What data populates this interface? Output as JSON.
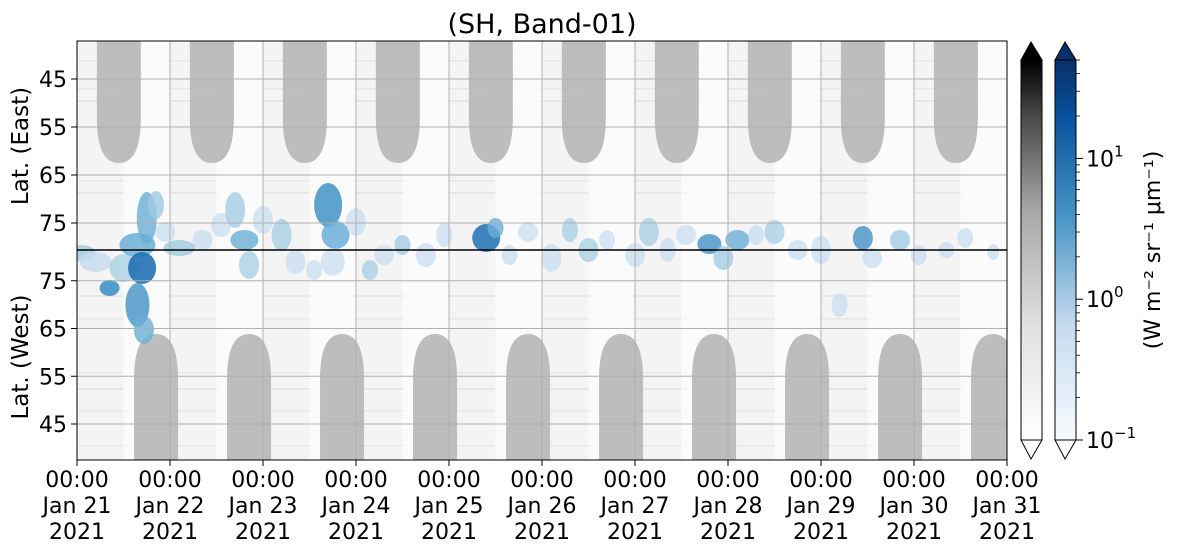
{
  "chart_data": {
    "type": "heatmap",
    "title": "(SH, Band-01)",
    "ylabel_top": "Lat. (East)",
    "ylabel_bottom": "Lat. (West)",
    "y_ticks_top": [
      "45",
      "55",
      "65",
      "75"
    ],
    "y_ticks_bottom": [
      "75",
      "65",
      "55",
      "45"
    ],
    "x_ticks": [
      {
        "time": "00:00",
        "date": "Jan 21",
        "year": "2021"
      },
      {
        "time": "00:00",
        "date": "Jan 22",
        "year": "2021"
      },
      {
        "time": "00:00",
        "date": "Jan 23",
        "year": "2021"
      },
      {
        "time": "00:00",
        "date": "Jan 24",
        "year": "2021"
      },
      {
        "time": "00:00",
        "date": "Jan 25",
        "year": "2021"
      },
      {
        "time": "00:00",
        "date": "Jan 26",
        "year": "2021"
      },
      {
        "time": "00:00",
        "date": "Jan 27",
        "year": "2021"
      },
      {
        "time": "00:00",
        "date": "Jan 28",
        "year": "2021"
      },
      {
        "time": "00:00",
        "date": "Jan 29",
        "year": "2021"
      },
      {
        "time": "00:00",
        "date": "Jan 30",
        "year": "2021"
      },
      {
        "time": "00:00",
        "date": "Jan 31",
        "year": "2021"
      }
    ],
    "colorbar_label": "(W m⁻² sr⁻¹ μm⁻¹)",
    "colorbar_ticks": [
      {
        "base": "10",
        "exp": "1",
        "value": 10
      },
      {
        "base": "10",
        "exp": "0",
        "value": 1
      },
      {
        "base": "10",
        "exp": "−1",
        "value": 0.1
      }
    ],
    "colorbar_range": [
      0.1,
      50
    ],
    "colorbar_scale": "log",
    "grid": true,
    "colors": {
      "gray_night": "#b9b9b9",
      "blue_low": "#e6f0fa",
      "blue_mid": "#6aaed6",
      "blue_high": "#2171b5",
      "blue_max": "#08306b"
    },
    "night_regions_top_day_centers": [
      21.45,
      22.45,
      23.45,
      24.45,
      25.45,
      26.45,
      27.45,
      28.45,
      29.45,
      30.45
    ],
    "night_regions_bottom_day_centers": [
      21.85,
      22.85,
      23.85,
      24.85,
      25.85,
      26.85,
      27.85,
      28.85,
      29.85,
      30.85
    ]
  }
}
